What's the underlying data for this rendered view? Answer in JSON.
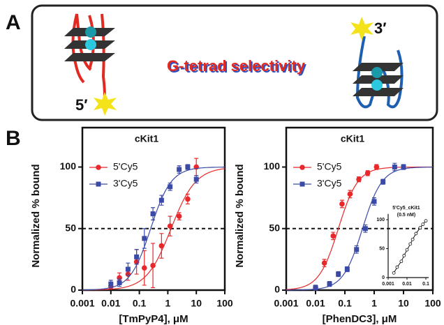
{
  "panel_a": {
    "label": "A",
    "title": "G-tetrad selectivity",
    "label_5": "5′",
    "label_3": "3′"
  },
  "panel_b_label": "B",
  "chart_data": [
    {
      "type": "scatter",
      "title": "cKit1",
      "xlabel": "[TmPyP4], μM",
      "ylabel": "Normalized % bound",
      "xscale": "log",
      "xlim": [
        0.001,
        100
      ],
      "ylim": [
        0,
        132
      ],
      "xticks": [
        0.001,
        0.01,
        0.1,
        1,
        10,
        100
      ],
      "yticks": [
        0,
        50,
        100
      ],
      "reference_line": 50,
      "legend": "upper-left",
      "series": [
        {
          "name": "5'Cy5",
          "color": "#e8282a",
          "marker": "circle",
          "x": [
            0.01,
            0.02,
            0.04,
            0.08,
            0.15,
            0.3,
            0.6,
            1.2,
            2.5,
            5,
            10
          ],
          "values": [
            3,
            10,
            13,
            23,
            18,
            20,
            36,
            52,
            60,
            74,
            100
          ],
          "errors": [
            2,
            4,
            5,
            10,
            14,
            18,
            10,
            8,
            3,
            4,
            7
          ],
          "fit": {
            "bottom": 0,
            "top": 100,
            "ec50": 1.3,
            "hill": 1
          }
        },
        {
          "name": "3'Cy5",
          "color": "#3a4aa6",
          "marker": "square",
          "x": [
            0.01,
            0.02,
            0.04,
            0.08,
            0.15,
            0.3,
            0.6,
            1.2,
            2.5,
            5,
            10
          ],
          "values": [
            5,
            6,
            17,
            27,
            42,
            62,
            73,
            84,
            98,
            100,
            90
          ],
          "errors": [
            3,
            3,
            5,
            6,
            8,
            5,
            4,
            3,
            3,
            2,
            3
          ],
          "fit": {
            "bottom": 0,
            "top": 100,
            "ec50": 0.25,
            "hill": 1.2
          }
        }
      ]
    },
    {
      "type": "scatter",
      "title": "cKit1",
      "xlabel": "[PhenDC3], μM",
      "ylabel": "Normalized % bound",
      "xscale": "log",
      "xlim": [
        0.001,
        100
      ],
      "ylim": [
        0,
        132
      ],
      "xticks": [
        0.001,
        0.01,
        0.1,
        1,
        10,
        100
      ],
      "yticks": [
        0,
        50,
        100
      ],
      "reference_line": 50,
      "legend": "upper-left",
      "series": [
        {
          "name": "5'Cy5",
          "color": "#e8282a",
          "marker": "circle",
          "x": [
            0.01,
            0.02,
            0.04,
            0.08,
            0.15,
            0.3,
            0.6,
            1.2
          ],
          "values": [
            2,
            22,
            44,
            70,
            78,
            90,
            95,
            100
          ],
          "errors": [
            2,
            3,
            3,
            3,
            3,
            2,
            2,
            2
          ],
          "fit": {
            "bottom": 0,
            "top": 100,
            "ec50": 0.06,
            "hill": 1.3
          }
        },
        {
          "name": "3'Cy5",
          "color": "#3a4aa6",
          "marker": "square",
          "x": [
            0.01,
            0.03,
            0.06,
            0.12,
            0.25,
            0.5,
            1,
            2,
            5,
            10
          ],
          "values": [
            2,
            5,
            13,
            17,
            33,
            50,
            72,
            88,
            100,
            100
          ],
          "errors": [
            2,
            2,
            2,
            2,
            3,
            3,
            3,
            2,
            3,
            2
          ],
          "fit": {
            "bottom": 0,
            "top": 100,
            "ec50": 0.4,
            "hill": 1.3
          }
        }
      ],
      "inset": {
        "type": "line",
        "title": "5'Cy5_cKit1",
        "subtitle": "(0.5 nM)",
        "xscale": "log",
        "xlim": [
          0.001,
          0.1
        ],
        "ylim": [
          0,
          110
        ],
        "xticks": [
          0.001,
          0.01,
          0.1
        ],
        "yticks": [
          0,
          50,
          100
        ],
        "x": [
          0.002,
          0.003,
          0.005,
          0.007,
          0.01,
          0.015,
          0.02,
          0.03,
          0.05,
          0.07,
          0.1
        ],
        "values": [
          8,
          18,
          28,
          38,
          48,
          58,
          66,
          76,
          86,
          92,
          98
        ],
        "color": "#111111"
      }
    }
  ]
}
